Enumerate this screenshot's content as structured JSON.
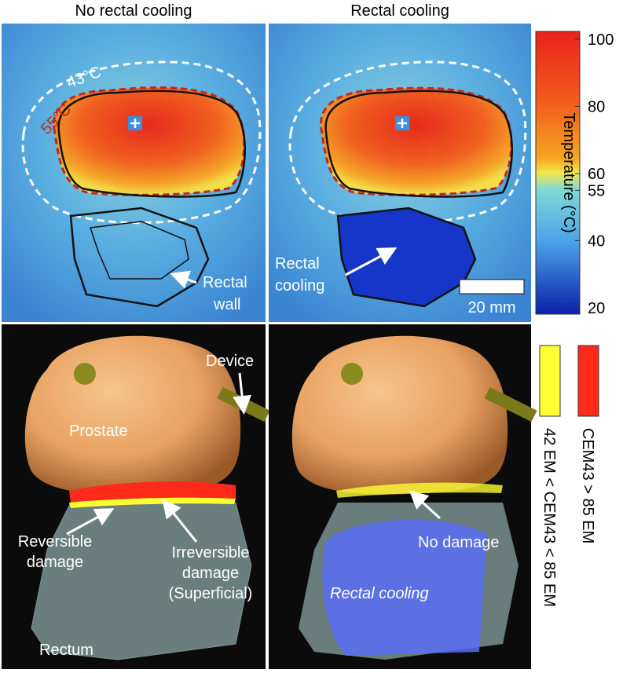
{
  "panels": [
    {
      "title": "No rectal cooling"
    },
    {
      "title": "Rectal cooling"
    }
  ],
  "top_annotations": {
    "isotherm_43": "43°C",
    "isotherm_55": "55°C",
    "rectal_wall": [
      "Rectal",
      "wall"
    ],
    "rectal_cooling": [
      "Rectal",
      "cooling"
    ],
    "scale_bar": "20 mm"
  },
  "colorbar": {
    "label": "Temperature (°C)",
    "lim": [
      20,
      100
    ],
    "ticks": [
      20,
      40,
      55,
      60,
      80,
      100
    ]
  },
  "bottom_annotations": {
    "device": "Device",
    "prostate": "Prostate",
    "reversible": [
      "Reversible",
      "damage"
    ],
    "irreversible": [
      "Irreversible",
      "damage",
      "(Superficial)"
    ],
    "rectum": "Rectum",
    "no_damage": "No damage",
    "rectal_cooling": "Rectal cooling"
  },
  "legend": [
    {
      "label": "42 EM < CEM43 < 85 EM",
      "color": "#ffff33"
    },
    {
      "label": "CEM43 > 85 EM",
      "color": "#ff2a1a"
    }
  ]
}
